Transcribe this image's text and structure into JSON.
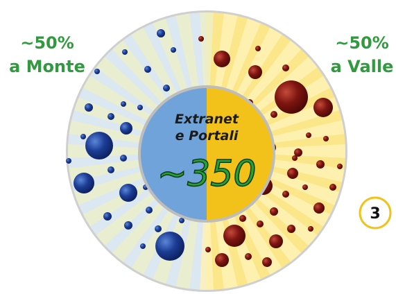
{
  "left_label": {
    "percent": "~50%",
    "text": "a Monte"
  },
  "right_label": {
    "percent": "~50%",
    "text": "a Valle"
  },
  "center": {
    "line1": "Extranet",
    "line2": "e Portali",
    "value": "~350"
  },
  "badge": "3"
}
